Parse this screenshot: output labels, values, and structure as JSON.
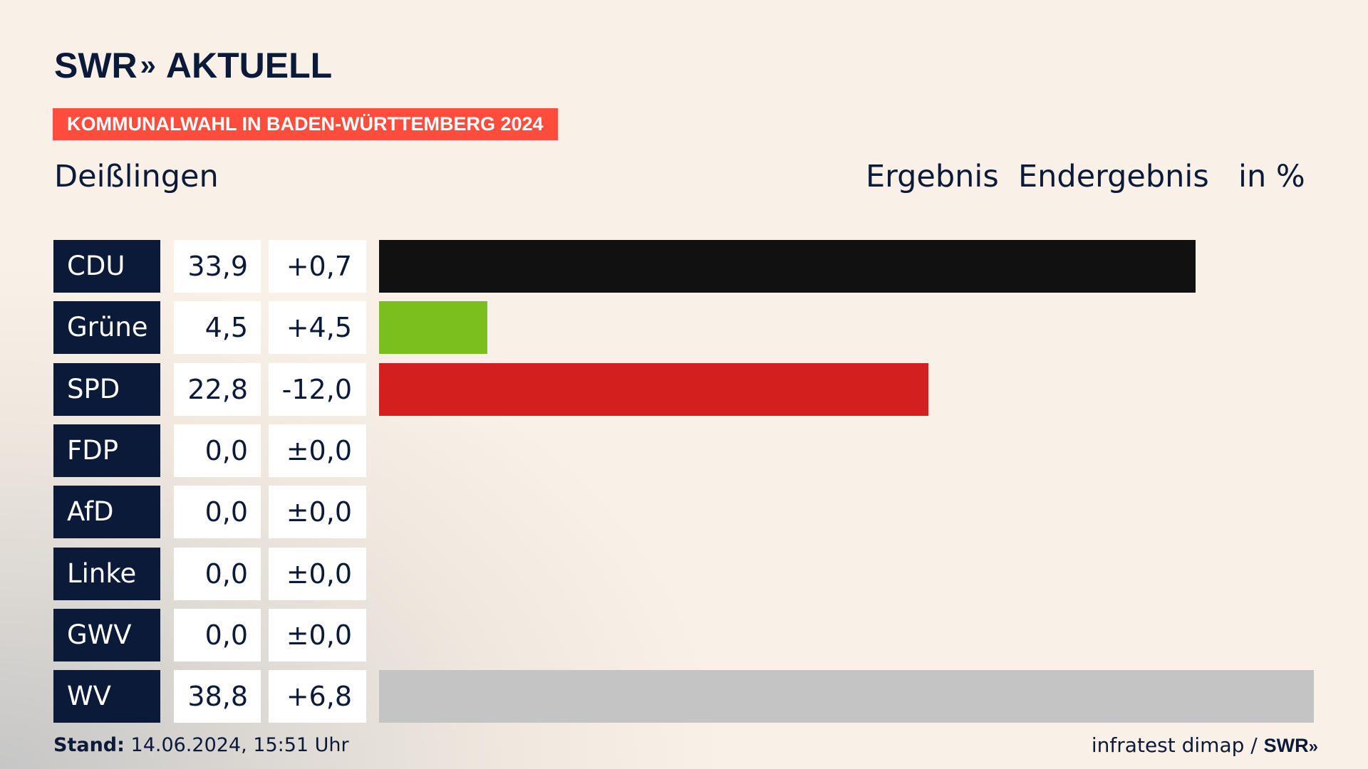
{
  "header": {
    "logo_main": "SWR",
    "logo_arrows": "»",
    "logo_sub": "AKTUELL",
    "banner": "KOMMUNALWAHL IN BADEN-WÜRTTEMBERG 2024",
    "place": "Deißlingen",
    "col_result": "Ergebnis",
    "col_status": "Endergebnis",
    "col_unit": "in %"
  },
  "footer": {
    "stand_label": "Stand:",
    "stand_value": "14.06.2024, 15:51 Uhr",
    "source": "infratest dimap /",
    "source_logo": "SWR",
    "source_arrows": "»"
  },
  "chart_data": {
    "type": "bar",
    "orientation": "horizontal",
    "title": "",
    "xlabel": "",
    "ylabel": "",
    "xlim": [
      0,
      38.8
    ],
    "categories": [
      "CDU",
      "Grüne",
      "SPD",
      "FDP",
      "AfD",
      "Linke",
      "GWV",
      "WV"
    ],
    "values": [
      33.9,
      4.5,
      22.8,
      0.0,
      0.0,
      0.0,
      0.0,
      38.8
    ],
    "value_labels": [
      "33,9",
      "4,5",
      "22,8",
      "0,0",
      "0,0",
      "0,0",
      "0,0",
      "38,8"
    ],
    "diff_labels": [
      "+0,7",
      "+4,5",
      "-12,0",
      "±0,0",
      "±0,0",
      "±0,0",
      "±0,0",
      "+6,8"
    ],
    "colors": [
      "#111111",
      "#7bbf1e",
      "#d41f1f",
      "#ffe600",
      "#1a9fd9",
      "#bd2d7a",
      "#888888",
      "#c4c4c4"
    ]
  }
}
